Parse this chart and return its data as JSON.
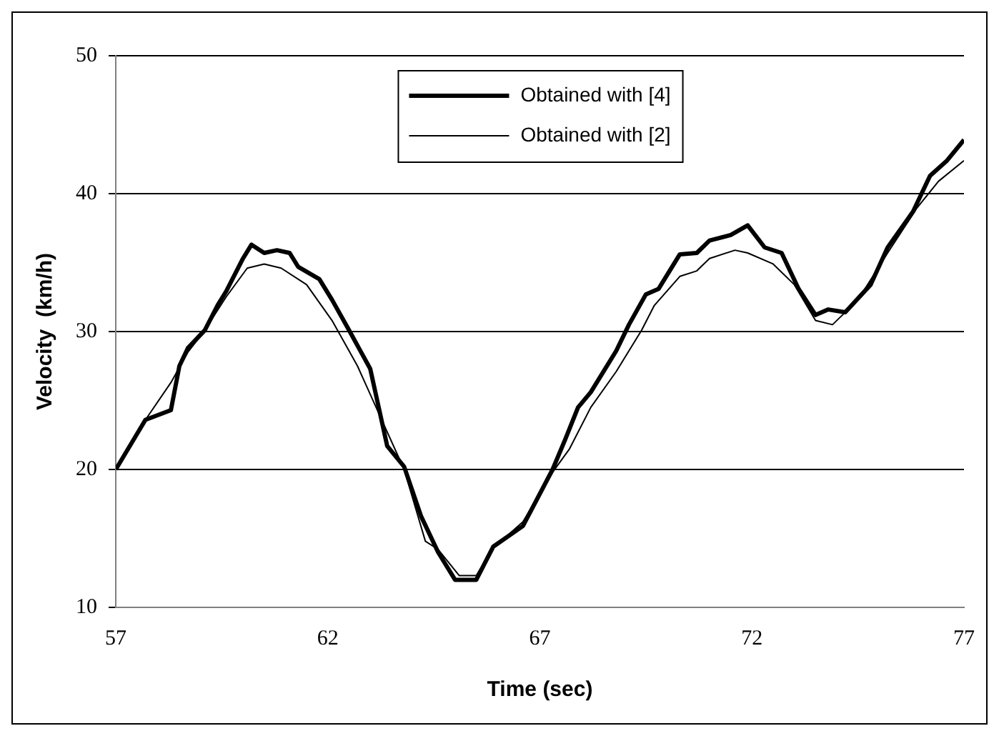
{
  "chart_data": {
    "type": "line",
    "xlabel": "Time (sec)",
    "ylabel": "Velocity  (km/h)",
    "xlim": [
      57,
      77
    ],
    "xticks": [
      57,
      62,
      67,
      72,
      77
    ],
    "ylim": [
      10,
      50
    ],
    "yticks": [
      10,
      20,
      30,
      40,
      50
    ],
    "grid": "y",
    "legend": "top",
    "marker": "none",
    "line_style": "solid",
    "series": [
      {
        "name": "Obtained with [4]",
        "color": "#000000",
        "x": [
          57,
          57.7,
          58.3,
          58.5,
          58.7,
          59.1,
          59.4,
          59.6,
          60,
          60.2,
          60.5,
          60.8,
          61.1,
          61.3,
          61.8,
          62.1,
          62.5,
          63,
          63.4,
          63.8,
          64.2,
          64.6,
          65,
          65.5,
          65.9,
          66.6,
          67.3,
          67.6,
          67.9,
          68.2,
          68.8,
          69.1,
          69.5,
          69.8,
          70.3,
          70.7,
          71,
          71.5,
          71.9,
          72.3,
          72.7,
          73.1,
          73.5,
          73.8,
          74.2,
          74.8,
          75.2,
          75.8,
          76.2,
          76.6,
          77
        ],
        "values": [
          20,
          23.6,
          24.3,
          27.5,
          28.8,
          30.1,
          31.9,
          32.9,
          35.3,
          36.3,
          35.7,
          35.9,
          35.7,
          34.7,
          33.8,
          32.3,
          30.1,
          27.3,
          21.7,
          20.2,
          16.6,
          14,
          12,
          12,
          14.4,
          15.9,
          20,
          22.2,
          24.5,
          25.6,
          28.6,
          30.5,
          32.7,
          33.1,
          35.6,
          35.7,
          36.6,
          37,
          37.7,
          36.1,
          35.7,
          33.1,
          31.2,
          31.6,
          31.4,
          33.4,
          36.1,
          38.7,
          41.3,
          42.4,
          43.9
        ]
      },
      {
        "name": "Obtained with [2]",
        "color": "#000000",
        "x": [
          57,
          57.7,
          58.3,
          58.7,
          59.1,
          59.6,
          60.1,
          60.5,
          60.9,
          61.5,
          62.1,
          62.7,
          63.3,
          63.8,
          64.3,
          64.6,
          65.1,
          65.5,
          65.9,
          66.6,
          67.3,
          67.7,
          68.2,
          68.8,
          69.4,
          69.7,
          70.3,
          70.7,
          71,
          71.6,
          71.9,
          72.5,
          73,
          73.5,
          73.9,
          74.5,
          75.2,
          75.9,
          76.4,
          77
        ],
        "values": [
          20,
          23.6,
          26.3,
          28.5,
          30.1,
          32.5,
          34.6,
          34.9,
          34.6,
          33.4,
          30.8,
          27.5,
          23.4,
          20,
          14.8,
          14.2,
          12.3,
          12.3,
          14.3,
          16.2,
          19.8,
          21.5,
          24.5,
          27.1,
          30.1,
          31.9,
          34,
          34.4,
          35.3,
          35.9,
          35.7,
          34.9,
          33.4,
          30.8,
          30.5,
          32.3,
          35.7,
          39,
          40.9,
          42.4
        ]
      }
    ]
  }
}
